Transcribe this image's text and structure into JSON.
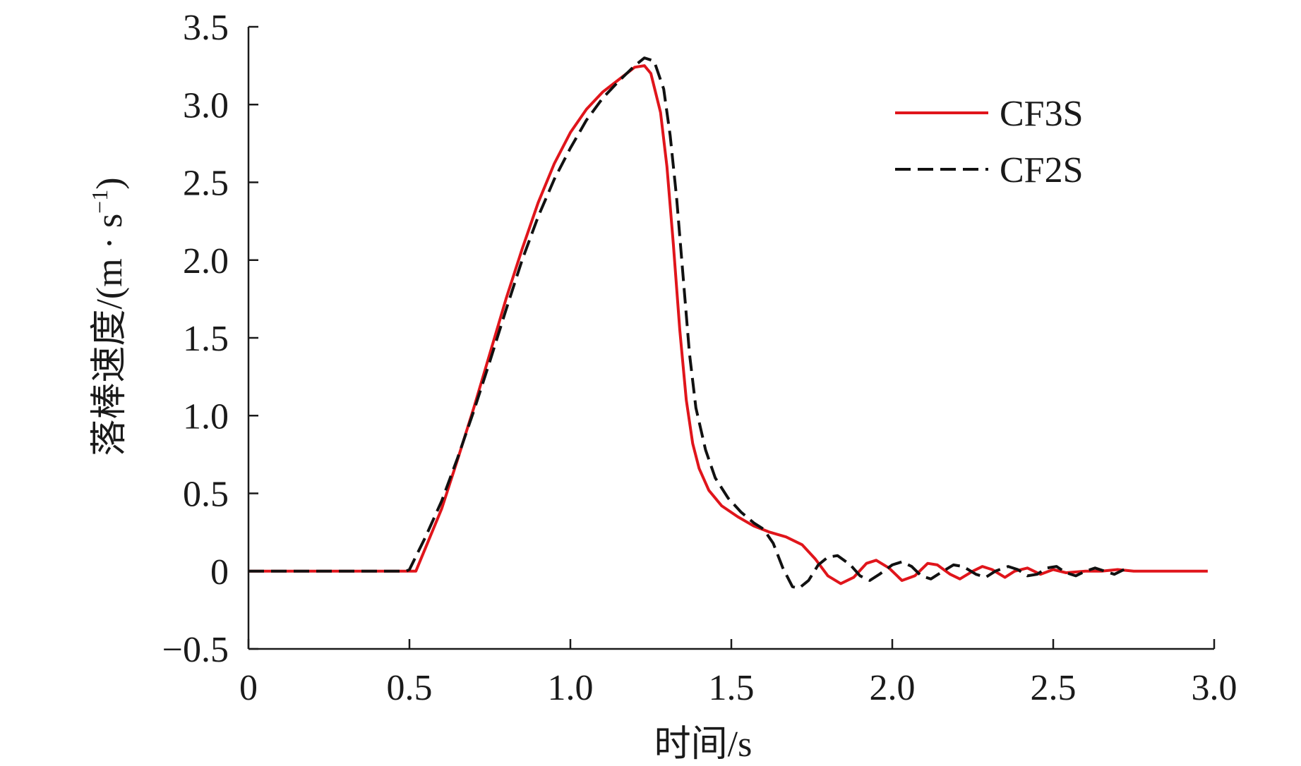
{
  "chart_data": {
    "type": "line",
    "xlabel": "时间/s",
    "ylabel": "落棒速度/(m · s",
    "ylabel_superscript": "−1",
    "ylabel_close": ")",
    "xlim": [
      0,
      3.0
    ],
    "ylim": [
      -0.5,
      3.5
    ],
    "x_ticks": [
      0,
      0.5,
      1.0,
      1.5,
      2.0,
      2.5,
      3.0
    ],
    "x_tick_labels": [
      "0",
      "0.5",
      "1.0",
      "1.5",
      "2.0",
      "2.5",
      "3.0"
    ],
    "y_ticks": [
      -0.5,
      0,
      0.5,
      1.0,
      1.5,
      2.0,
      2.5,
      3.0,
      3.5
    ],
    "y_tick_labels": [
      "−0.5",
      "0",
      "0.5",
      "1.0",
      "1.5",
      "2.0",
      "2.5",
      "3.0",
      "3.5"
    ],
    "grid": false,
    "legend_position": "top-right",
    "series": [
      {
        "name": "CF3S",
        "color": "#e0151b",
        "dash": "solid",
        "points": [
          [
            0,
            0.0
          ],
          [
            0.5,
            0.0
          ],
          [
            0.52,
            0.0
          ],
          [
            0.55,
            0.15
          ],
          [
            0.6,
            0.4
          ],
          [
            0.65,
            0.72
          ],
          [
            0.7,
            1.05
          ],
          [
            0.75,
            1.4
          ],
          [
            0.8,
            1.75
          ],
          [
            0.85,
            2.07
          ],
          [
            0.9,
            2.37
          ],
          [
            0.95,
            2.62
          ],
          [
            1.0,
            2.82
          ],
          [
            1.05,
            2.97
          ],
          [
            1.1,
            3.08
          ],
          [
            1.15,
            3.16
          ],
          [
            1.2,
            3.24
          ],
          [
            1.23,
            3.25
          ],
          [
            1.25,
            3.2
          ],
          [
            1.28,
            2.95
          ],
          [
            1.3,
            2.6
          ],
          [
            1.32,
            2.1
          ],
          [
            1.34,
            1.55
          ],
          [
            1.36,
            1.1
          ],
          [
            1.38,
            0.82
          ],
          [
            1.4,
            0.66
          ],
          [
            1.43,
            0.52
          ],
          [
            1.47,
            0.42
          ],
          [
            1.52,
            0.35
          ],
          [
            1.57,
            0.29
          ],
          [
            1.62,
            0.25
          ],
          [
            1.67,
            0.22
          ],
          [
            1.72,
            0.17
          ],
          [
            1.76,
            0.08
          ],
          [
            1.8,
            -0.03
          ],
          [
            1.84,
            -0.08
          ],
          [
            1.88,
            -0.04
          ],
          [
            1.92,
            0.05
          ],
          [
            1.95,
            0.07
          ],
          [
            1.99,
            0.02
          ],
          [
            2.03,
            -0.06
          ],
          [
            2.07,
            -0.03
          ],
          [
            2.11,
            0.05
          ],
          [
            2.14,
            0.04
          ],
          [
            2.18,
            -0.02
          ],
          [
            2.21,
            -0.05
          ],
          [
            2.25,
            0.0
          ],
          [
            2.28,
            0.03
          ],
          [
            2.31,
            0.01
          ],
          [
            2.35,
            -0.04
          ],
          [
            2.38,
            0.0
          ],
          [
            2.42,
            0.02
          ],
          [
            2.46,
            -0.02
          ],
          [
            2.5,
            0.01
          ],
          [
            2.54,
            -0.01
          ],
          [
            2.6,
            0.0
          ],
          [
            2.65,
            0.0
          ],
          [
            2.7,
            0.01
          ],
          [
            2.75,
            0.0
          ],
          [
            2.8,
            0.0
          ],
          [
            2.9,
            0.0
          ],
          [
            2.98,
            0.0
          ]
        ]
      },
      {
        "name": "CF2S",
        "color": "#111111",
        "dash": "dashed",
        "points": [
          [
            0,
            0.0
          ],
          [
            0.49,
            0.0
          ],
          [
            0.5,
            0.01
          ],
          [
            0.55,
            0.22
          ],
          [
            0.6,
            0.45
          ],
          [
            0.65,
            0.73
          ],
          [
            0.7,
            1.03
          ],
          [
            0.75,
            1.35
          ],
          [
            0.8,
            1.68
          ],
          [
            0.85,
            2.0
          ],
          [
            0.9,
            2.28
          ],
          [
            0.95,
            2.52
          ],
          [
            1.0,
            2.72
          ],
          [
            1.05,
            2.9
          ],
          [
            1.1,
            3.04
          ],
          [
            1.15,
            3.15
          ],
          [
            1.2,
            3.25
          ],
          [
            1.23,
            3.3
          ],
          [
            1.26,
            3.28
          ],
          [
            1.29,
            3.1
          ],
          [
            1.31,
            2.8
          ],
          [
            1.33,
            2.4
          ],
          [
            1.35,
            1.9
          ],
          [
            1.37,
            1.4
          ],
          [
            1.39,
            1.05
          ],
          [
            1.42,
            0.78
          ],
          [
            1.45,
            0.6
          ],
          [
            1.49,
            0.47
          ],
          [
            1.53,
            0.38
          ],
          [
            1.57,
            0.31
          ],
          [
            1.6,
            0.27
          ],
          [
            1.63,
            0.18
          ],
          [
            1.66,
            0.02
          ],
          [
            1.69,
            -0.1
          ],
          [
            1.71,
            -0.11
          ],
          [
            1.74,
            -0.06
          ],
          [
            1.77,
            0.04
          ],
          [
            1.8,
            0.09
          ],
          [
            1.83,
            0.1
          ],
          [
            1.87,
            0.04
          ],
          [
            1.9,
            -0.03
          ],
          [
            1.93,
            -0.06
          ],
          [
            1.96,
            -0.02
          ],
          [
            2.0,
            0.04
          ],
          [
            2.03,
            0.06
          ],
          [
            2.06,
            0.03
          ],
          [
            2.09,
            -0.03
          ],
          [
            2.12,
            -0.05
          ],
          [
            2.15,
            -0.01
          ],
          [
            2.19,
            0.04
          ],
          [
            2.22,
            0.03
          ],
          [
            2.26,
            -0.02
          ],
          [
            2.29,
            -0.04
          ],
          [
            2.32,
            0.0
          ],
          [
            2.36,
            0.03
          ],
          [
            2.39,
            0.01
          ],
          [
            2.42,
            -0.03
          ],
          [
            2.45,
            -0.02
          ],
          [
            2.48,
            0.02
          ],
          [
            2.51,
            0.03
          ],
          [
            2.54,
            -0.01
          ],
          [
            2.57,
            -0.03
          ],
          [
            2.6,
            0.0
          ],
          [
            2.63,
            0.02
          ],
          [
            2.66,
            0.0
          ],
          [
            2.69,
            -0.02
          ],
          [
            2.72,
            0.01
          ]
        ]
      }
    ]
  }
}
